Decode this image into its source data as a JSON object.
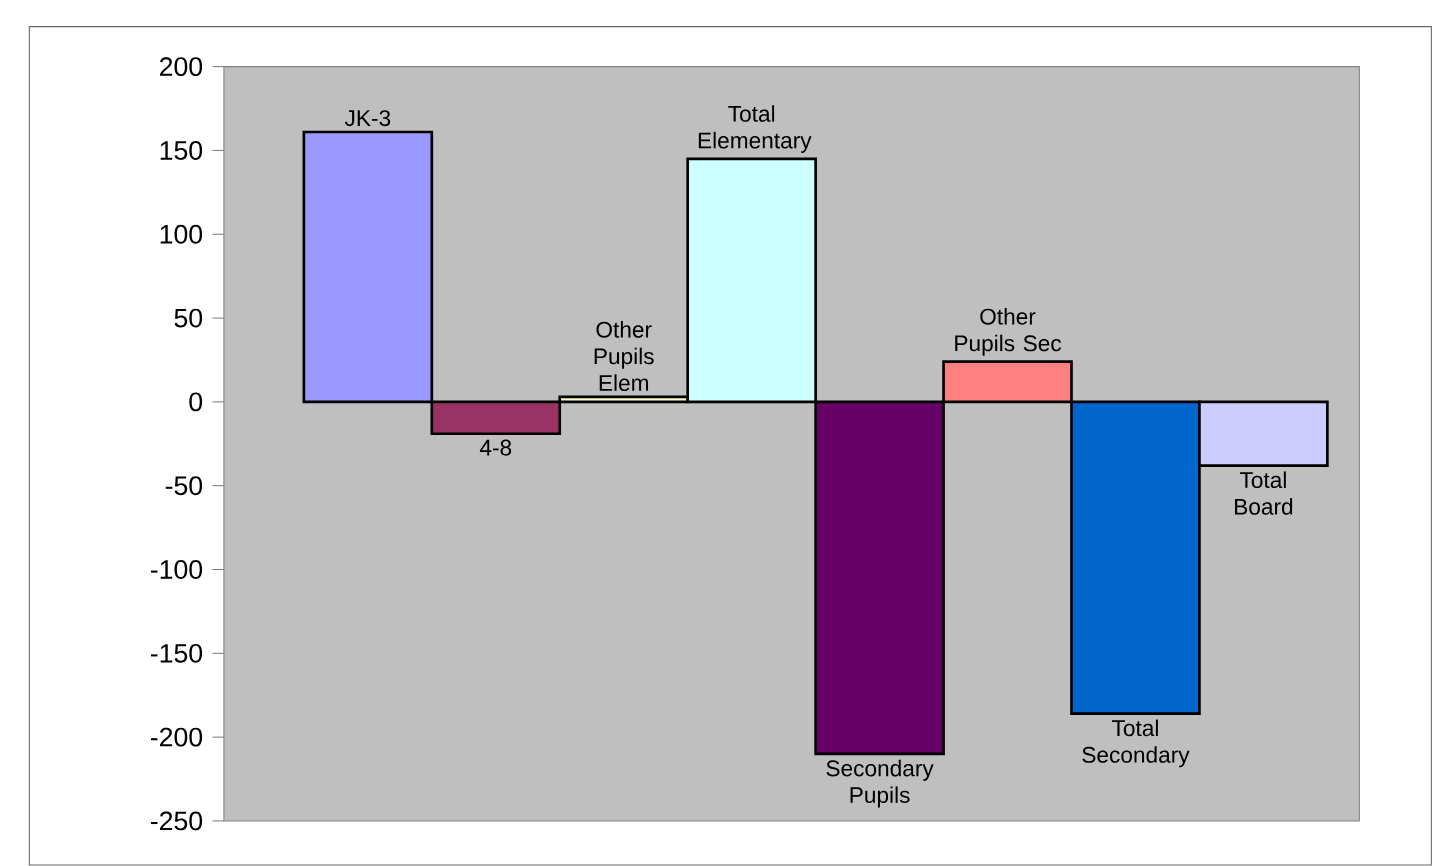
{
  "chart_data": {
    "type": "bar",
    "categories": [
      "JK-3",
      "4-8",
      "Other Pupils Elem",
      "Total Elementary",
      "Secondary Pupils",
      "Other Pupils Sec",
      "Total Secondary",
      "Total Board"
    ],
    "values": [
      161,
      -19,
      3,
      145,
      -210,
      24,
      -186,
      -38
    ],
    "colors": [
      "#9999ff",
      "#993366",
      "#ffffcc",
      "#ccffff",
      "#660066",
      "#ff8080",
      "#0066cc",
      "#ccccff"
    ],
    "ylim": [
      -250,
      200
    ],
    "yticks": [
      -250,
      -200,
      -150,
      -100,
      -50,
      0,
      50,
      100,
      150,
      200
    ],
    "tick_labels": "y"
  }
}
